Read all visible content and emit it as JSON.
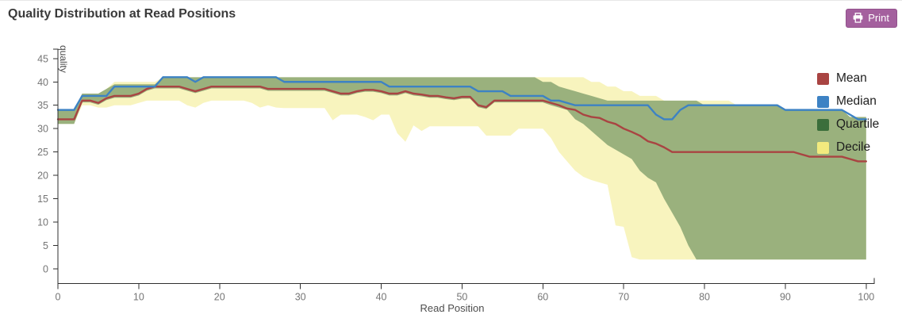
{
  "header": {
    "title": "Quality Distribution at Read Positions",
    "print_label": "Print"
  },
  "chart_data": {
    "type": "area",
    "title": "Quality Distribution at Read Positions",
    "xlabel": "Read Position",
    "ylabel": "quality",
    "xlim": [
      0,
      101
    ],
    "ylim": [
      0,
      47
    ],
    "x_ticks": [
      0,
      10,
      20,
      30,
      40,
      50,
      60,
      70,
      80,
      90,
      100
    ],
    "y_ticks": [
      0,
      5,
      10,
      15,
      20,
      25,
      30,
      35,
      40,
      45
    ],
    "grid": false,
    "legend_position": "top-right",
    "x_start": 0,
    "x_step": 1,
    "series": [
      {
        "name": "Mean",
        "type": "line",
        "color": "#a94442",
        "values": [
          32,
          32,
          32,
          36,
          36,
          35.5,
          36.5,
          37,
          37,
          37,
          37.5,
          38.5,
          39,
          39,
          39,
          39,
          38.5,
          38,
          38.5,
          39,
          39,
          39,
          39,
          39,
          39,
          39,
          38.5,
          38.5,
          38.5,
          38.5,
          38.5,
          38.5,
          38.5,
          38.5,
          38,
          37.5,
          37.5,
          38,
          38.3,
          38.3,
          38,
          37.5,
          37.5,
          38,
          37.5,
          37.3,
          37,
          37,
          36.7,
          36.5,
          36.8,
          36.8,
          35,
          34.6,
          36,
          36,
          36,
          36,
          36,
          36,
          36,
          35.5,
          35,
          34.3,
          34,
          33,
          32.5,
          32.3,
          31.5,
          31,
          30,
          29.3,
          28.5,
          27.3,
          26.8,
          26,
          25,
          25,
          25,
          25,
          25,
          25,
          25,
          25,
          25,
          25,
          25,
          25,
          25,
          25,
          25,
          25,
          24.5,
          24,
          24,
          24,
          24,
          24,
          23.5,
          23,
          23
        ]
      },
      {
        "name": "Median",
        "type": "line",
        "color": "#3d82c4",
        "values": [
          34,
          34,
          34,
          37,
          37,
          37,
          37,
          39,
          39,
          39,
          39,
          39,
          39,
          41,
          41,
          41,
          41,
          40,
          41,
          41,
          41,
          41,
          41,
          41,
          41,
          41,
          41,
          41,
          40,
          40,
          40,
          40,
          40,
          40,
          40,
          40,
          40,
          40,
          40,
          40,
          40,
          39,
          39,
          39,
          39,
          39,
          39,
          39,
          39,
          39,
          39,
          39,
          38,
          38,
          38,
          38,
          37,
          37,
          37,
          37,
          37,
          36,
          36,
          35.5,
          35,
          35,
          35,
          35,
          35,
          35,
          35,
          35,
          35,
          35,
          33,
          32,
          32,
          34,
          35,
          35,
          35,
          35,
          35,
          35,
          35,
          35,
          35,
          35,
          35,
          35,
          34,
          34,
          34,
          34,
          34,
          34,
          34,
          34,
          33,
          32,
          32
        ]
      },
      {
        "name": "Quartile",
        "type": "band",
        "color": "#3b6e3b",
        "opacity": 0.5,
        "upper": [
          34,
          34,
          34,
          37.5,
          37.5,
          37.5,
          38.5,
          39.5,
          39.5,
          39.5,
          39.5,
          39.5,
          39.5,
          41,
          41,
          41,
          41,
          41,
          41,
          41,
          41,
          41,
          41,
          41,
          41,
          41,
          41,
          41,
          41,
          41,
          41,
          41,
          41,
          41,
          41,
          41,
          41,
          41,
          41,
          41,
          41,
          41,
          41,
          41,
          41,
          41,
          41,
          41,
          41,
          41,
          41,
          41,
          41,
          41,
          41,
          41,
          41,
          41,
          41,
          41,
          40,
          40,
          39,
          38.5,
          38,
          37.5,
          37,
          36.5,
          36,
          36,
          36,
          36,
          36,
          36,
          36,
          36,
          36,
          36,
          36,
          36,
          35,
          35,
          35,
          35,
          35,
          35,
          35,
          35,
          35,
          35,
          34,
          34,
          34,
          34,
          34,
          34,
          34,
          34,
          32.5,
          32.5,
          32.5
        ],
        "lower": [
          31,
          31,
          31,
          35.6,
          35.6,
          35.1,
          36.1,
          36.6,
          36.6,
          36.6,
          37.1,
          38.1,
          38.6,
          38.6,
          38.6,
          38.6,
          38.1,
          37.6,
          38.1,
          38.6,
          38.6,
          38.6,
          38.6,
          38.6,
          38.6,
          38.6,
          38.1,
          38.1,
          38.1,
          38.1,
          38.1,
          38.1,
          38.1,
          38.1,
          37.6,
          37.1,
          37.1,
          37.6,
          37.9,
          37.9,
          37.6,
          37.1,
          37.1,
          37.6,
          37.1,
          36.9,
          36.6,
          36.6,
          36.3,
          36.1,
          36.4,
          36.4,
          34.6,
          34.2,
          35.6,
          35.6,
          35.6,
          35.6,
          35.6,
          35.6,
          35.6,
          35,
          34.5,
          34,
          32,
          31,
          29.5,
          28,
          26.5,
          25.5,
          24.5,
          23.5,
          21,
          19.5,
          18.5,
          15,
          12,
          9,
          5,
          2,
          2,
          2,
          2,
          2,
          2,
          2,
          2,
          2,
          2,
          2,
          2,
          2,
          2,
          2,
          2,
          2,
          2,
          2,
          2,
          2,
          2
        ]
      },
      {
        "name": "Decile",
        "type": "band",
        "color": "#f2ea7e",
        "opacity": 0.5,
        "upper": [
          34,
          34,
          34,
          37.5,
          37.5,
          37.5,
          38.5,
          40,
          40,
          40,
          40,
          40,
          40,
          41,
          41,
          41,
          41,
          41,
          41,
          41,
          41,
          41,
          41,
          41,
          41,
          41,
          41,
          41,
          41,
          41,
          41,
          41,
          41,
          41,
          41,
          41,
          41,
          41,
          41,
          41,
          41,
          41,
          41,
          41,
          41,
          41,
          41,
          41,
          41,
          41,
          41,
          41,
          41,
          41,
          41,
          41,
          41,
          41,
          41,
          41,
          41,
          41,
          41,
          41,
          41,
          41,
          40,
          40,
          39,
          39,
          38,
          38,
          37,
          37,
          37,
          36,
          36,
          36,
          36,
          36,
          36,
          36,
          36,
          36,
          35,
          35,
          35,
          35,
          35,
          35,
          34,
          34,
          34,
          34,
          34,
          34,
          34,
          34,
          32.5,
          32.5,
          32.5
        ],
        "lower": [
          31,
          31,
          31,
          35,
          35,
          34.5,
          34.5,
          35,
          35,
          35,
          35.5,
          36,
          36,
          36,
          36,
          36,
          35,
          34.5,
          35.5,
          36,
          36,
          36,
          36,
          36,
          35.5,
          34.5,
          35,
          34.5,
          34.4,
          34.4,
          34.4,
          34.4,
          34.4,
          34.4,
          31.8,
          33,
          33,
          33,
          32.5,
          31.8,
          33,
          33,
          29,
          27.2,
          30.7,
          29.5,
          30.5,
          30.5,
          30.5,
          30.5,
          30.5,
          30.5,
          30.5,
          28.5,
          28.5,
          28.5,
          28.5,
          30,
          30,
          30,
          30,
          28,
          25,
          23,
          21,
          19.7,
          19,
          18.5,
          18,
          9.3,
          9,
          2.5,
          2,
          2,
          2,
          2,
          2,
          2,
          2,
          2,
          2,
          2,
          2,
          2,
          2,
          2,
          2,
          2,
          2,
          2,
          2,
          2,
          2,
          2,
          2,
          2,
          2,
          2,
          2,
          2,
          2
        ]
      }
    ]
  }
}
